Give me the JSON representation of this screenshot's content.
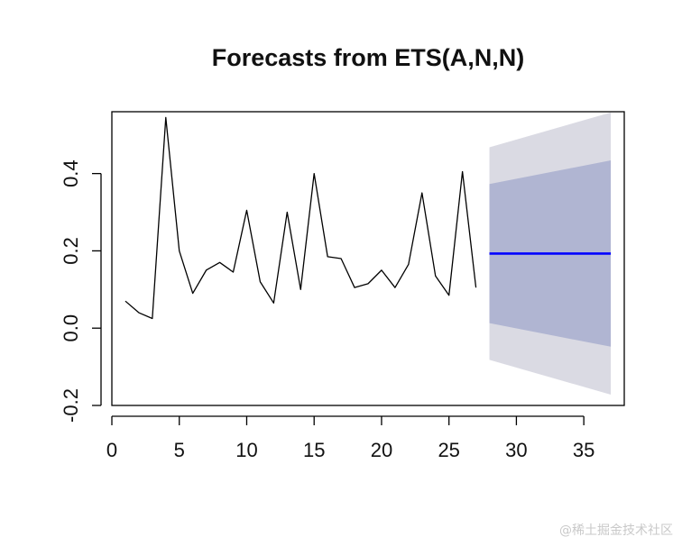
{
  "chart_data": {
    "type": "line",
    "title": "Forecasts from ETS(A,N,N)",
    "xlabel": "",
    "ylabel": "",
    "xlim": [
      0,
      38
    ],
    "ylim": [
      -0.2,
      0.56
    ],
    "x_ticks": [
      0,
      5,
      10,
      15,
      20,
      25,
      30,
      35
    ],
    "y_ticks": [
      -0.2,
      0.0,
      0.2,
      0.4
    ],
    "y_tick_labels": [
      "-0.2",
      "0.0",
      "0.2",
      "0.4"
    ],
    "grid": false,
    "series": [
      {
        "role": "observed",
        "color": "#000000",
        "x": [
          1,
          2,
          3,
          4,
          5,
          6,
          7,
          8,
          9,
          10,
          11,
          12,
          13,
          14,
          15,
          16,
          17,
          18,
          19,
          20,
          21,
          22,
          23,
          24,
          25,
          26,
          27
        ],
        "y": [
          0.07,
          0.04,
          0.025,
          0.545,
          0.2,
          0.09,
          0.15,
          0.17,
          0.145,
          0.305,
          0.12,
          0.065,
          0.3,
          0.1,
          0.4,
          0.185,
          0.18,
          0.105,
          0.115,
          0.15,
          0.105,
          0.165,
          0.35,
          0.135,
          0.085,
          0.405,
          0.105
        ]
      },
      {
        "role": "point-forecast",
        "color": "#0000ff",
        "x": [
          28,
          37
        ],
        "y": [
          0.193,
          0.193
        ]
      }
    ],
    "bands": [
      {
        "role": "outer-interval",
        "color": "#dadae3",
        "x": [
          28,
          37
        ],
        "lower": [
          -0.082,
          -0.172
        ],
        "upper": [
          0.468,
          0.558
        ]
      },
      {
        "role": "inner-interval",
        "color": "#b0b5d2",
        "x": [
          28,
          37
        ],
        "lower": [
          0.013,
          -0.048
        ],
        "upper": [
          0.373,
          0.434
        ]
      }
    ]
  },
  "watermark": "@稀土掘金技术社区"
}
